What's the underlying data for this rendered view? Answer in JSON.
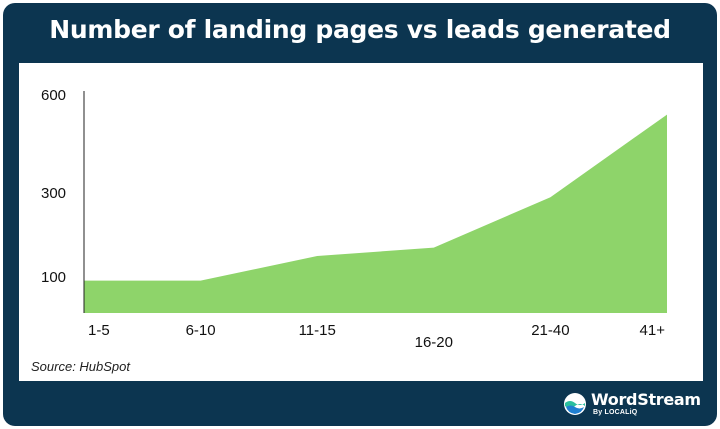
{
  "chart_data": {
    "type": "area",
    "title": "Number of landing pages vs leads generated",
    "categories": [
      "1-5",
      "6-10",
      "11-15",
      "16-20",
      "21-40",
      "41+"
    ],
    "values": [
      90,
      90,
      150,
      170,
      290,
      540
    ],
    "y_ticks": [
      100,
      300,
      600
    ],
    "ylim": [
      0,
      600
    ],
    "xlabel": "",
    "ylabel": "",
    "grid": false,
    "fill_color": "#8ed46a"
  },
  "source": "Source: HubSpot",
  "brand": {
    "name": "WordStream",
    "sub": "By LOCALiQ",
    "icon": "wordstream-logo-icon"
  },
  "colors": {
    "frame": "#0c3550",
    "panel": "#ffffff",
    "fill": "#8ed46a"
  }
}
